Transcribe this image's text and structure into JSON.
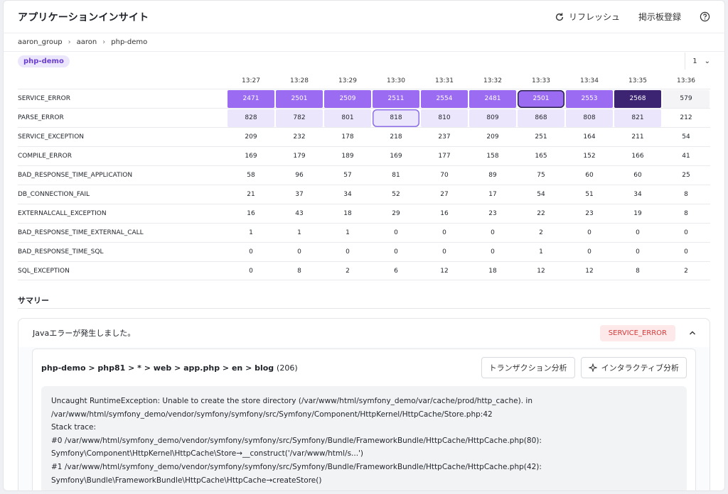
{
  "app_title": "アプリケーションインサイト",
  "actions": {
    "refresh": "リフレッシュ",
    "board": "掲示板登録"
  },
  "breadcrumb": [
    "aaron_group",
    "aaron",
    "php-demo"
  ],
  "tag": "php-demo",
  "page_select": "1",
  "times": [
    "13:27",
    "13:28",
    "13:29",
    "13:30",
    "13:31",
    "13:32",
    "13:33",
    "13:34",
    "13:35",
    "13:36"
  ],
  "rows": [
    {
      "label": "SERVICE_ERROR",
      "values": [
        "2471",
        "2501",
        "2509",
        "2511",
        "2554",
        "2481",
        "2501",
        "2553",
        "2568",
        "579"
      ]
    },
    {
      "label": "PARSE_ERROR",
      "values": [
        "828",
        "782",
        "801",
        "818",
        "810",
        "809",
        "868",
        "808",
        "821",
        "212"
      ]
    },
    {
      "label": "SERVICE_EXCEPTION",
      "values": [
        "209",
        "232",
        "178",
        "218",
        "237",
        "209",
        "251",
        "164",
        "211",
        "54"
      ]
    },
    {
      "label": "COMPILE_ERROR",
      "values": [
        "169",
        "179",
        "189",
        "169",
        "177",
        "158",
        "165",
        "152",
        "166",
        "41"
      ]
    },
    {
      "label": "BAD_RESPONSE_TIME_APPLICATION",
      "values": [
        "58",
        "96",
        "57",
        "81",
        "70",
        "89",
        "75",
        "60",
        "60",
        "25"
      ]
    },
    {
      "label": "DB_CONNECTION_FAIL",
      "values": [
        "21",
        "37",
        "34",
        "52",
        "27",
        "17",
        "54",
        "51",
        "34",
        "8"
      ]
    },
    {
      "label": "EXTERNALCALL_EXCEPTION",
      "values": [
        "16",
        "43",
        "18",
        "29",
        "16",
        "23",
        "22",
        "23",
        "19",
        "8"
      ]
    },
    {
      "label": "BAD_RESPONSE_TIME_EXTERNAL_CALL",
      "values": [
        "1",
        "1",
        "1",
        "0",
        "0",
        "0",
        "2",
        "0",
        "0",
        "0"
      ]
    },
    {
      "label": "BAD_RESPONSE_TIME_SQL",
      "values": [
        "0",
        "0",
        "0",
        "0",
        "0",
        "0",
        "1",
        "0",
        "0",
        "0"
      ]
    },
    {
      "label": "SQL_EXCEPTION",
      "values": [
        "0",
        "8",
        "2",
        "6",
        "12",
        "18",
        "12",
        "12",
        "8",
        "2"
      ]
    }
  ],
  "summary": {
    "title": "サマリー",
    "message": "Javaエラーが発生しました。",
    "badge": "SERVICE_ERROR",
    "path": "php-demo > php81 > * > web > app.php > en > blog",
    "count": "(206)",
    "btn_transaction": "トランザクション分析",
    "btn_interactive": "インタラクティブ分析",
    "trace": [
      "Uncaught RuntimeException: Unable to create the store directory (/var/www/html/symfony_demo/var/cache/prod/http_cache). in",
      "/var/www/html/symfony_demo/vendor/symfony/symfony/src/Symfony/Component/HttpKernel/HttpCache/Store.php:42",
      "Stack trace:",
      "#0 /var/www/html/symfony_demo/vendor/symfony/symfony/src/Symfony/Bundle/FrameworkBundle/HttpCache/HttpCache.php(80):",
      "Symfony\\Component\\HttpKernel\\HttpCache\\Store→__construct('/var/www/html/s...')",
      "#1 /var/www/html/symfony_demo/vendor/symfony/symfony/src/Symfony/Bundle/FrameworkBundle/HttpCache/HttpCache.php(42):",
      "Symfony\\Bundle\\FrameworkBundle\\HttpCache\\HttpCache→createStore()"
    ]
  },
  "colors": {
    "accent": "#9b6bf2",
    "dark": "#3c2473",
    "error": "#d73a3a"
  }
}
